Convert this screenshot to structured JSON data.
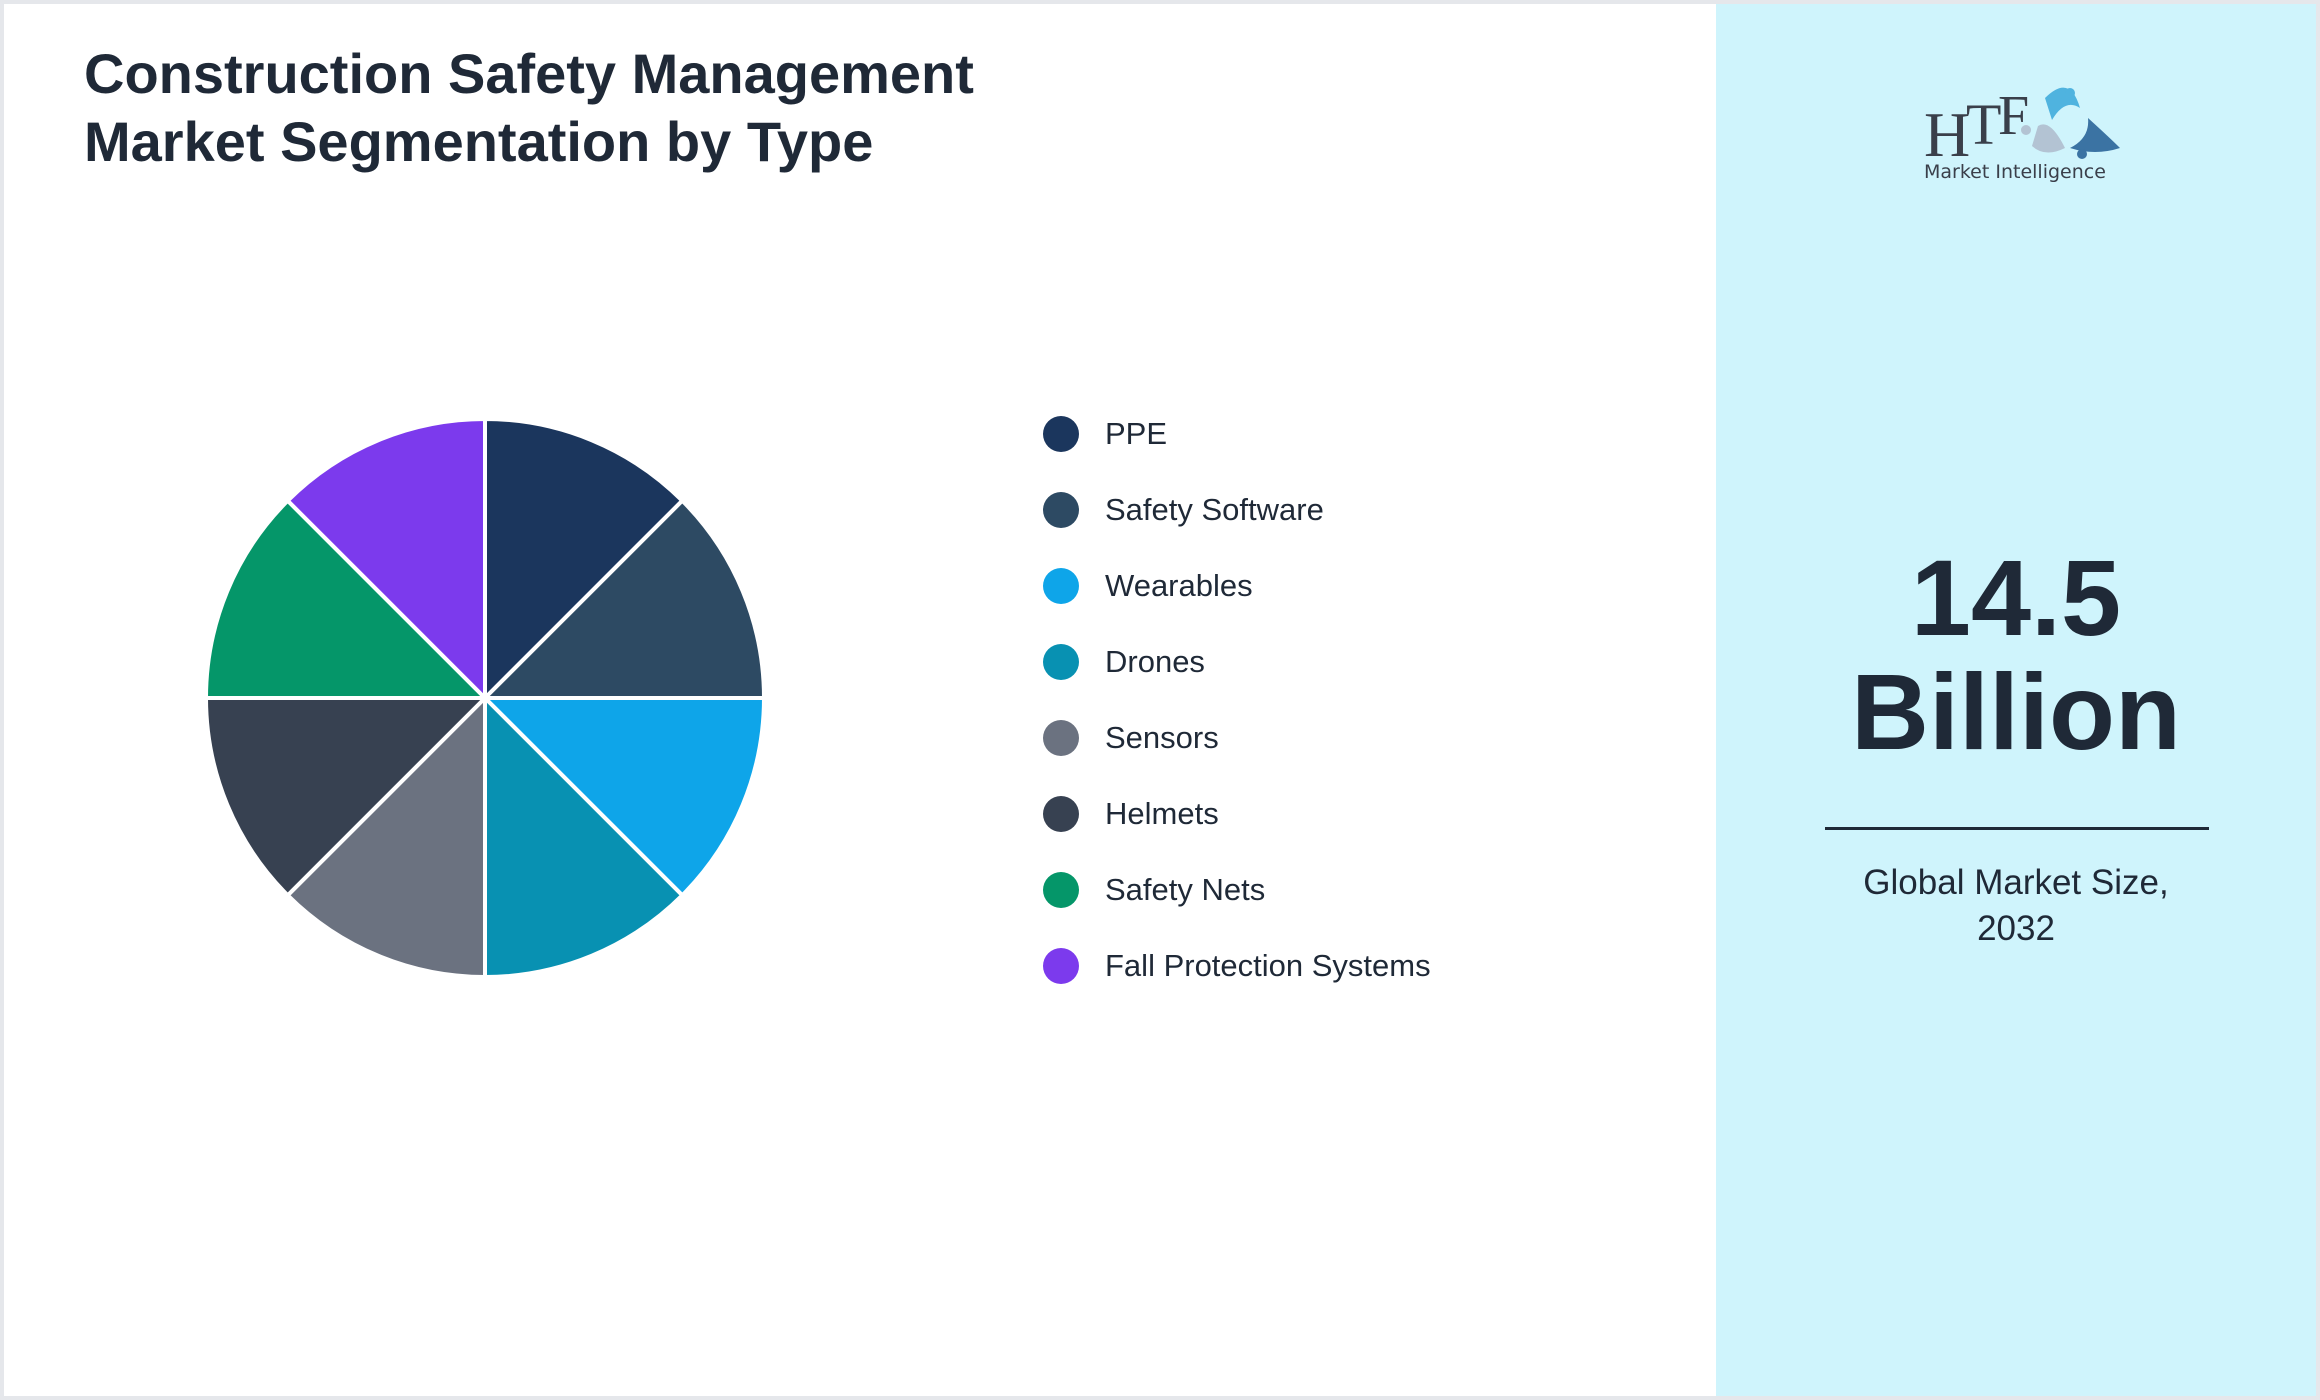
{
  "title_line1": "Construction Safety Management",
  "title_line2": "Market Segmentation by Type",
  "chart_data": {
    "type": "pie",
    "title": "Construction Safety Management Market Segmentation by Type",
    "categories": [
      "PPE",
      "Safety Software",
      "Wearables",
      "Drones",
      "Sensors",
      "Helmets",
      "Safety Nets",
      "Fall Protection Systems"
    ],
    "values": [
      12.5,
      12.5,
      12.5,
      12.5,
      12.5,
      12.5,
      12.5,
      12.5
    ],
    "colors": [
      "#1b365d",
      "#2d4a63",
      "#0ea5e9",
      "#0891b2",
      "#6b7280",
      "#374151",
      "#059669",
      "#7c3aed"
    ],
    "legend": "right",
    "start": "top",
    "direction": "clockwise"
  },
  "side": {
    "value": "14.5",
    "unit": "Billion",
    "caption_line1": "Global Market Size,",
    "caption_line2": "2032",
    "logo_text": "HTF",
    "logo_sub": "Market Intelligence"
  }
}
